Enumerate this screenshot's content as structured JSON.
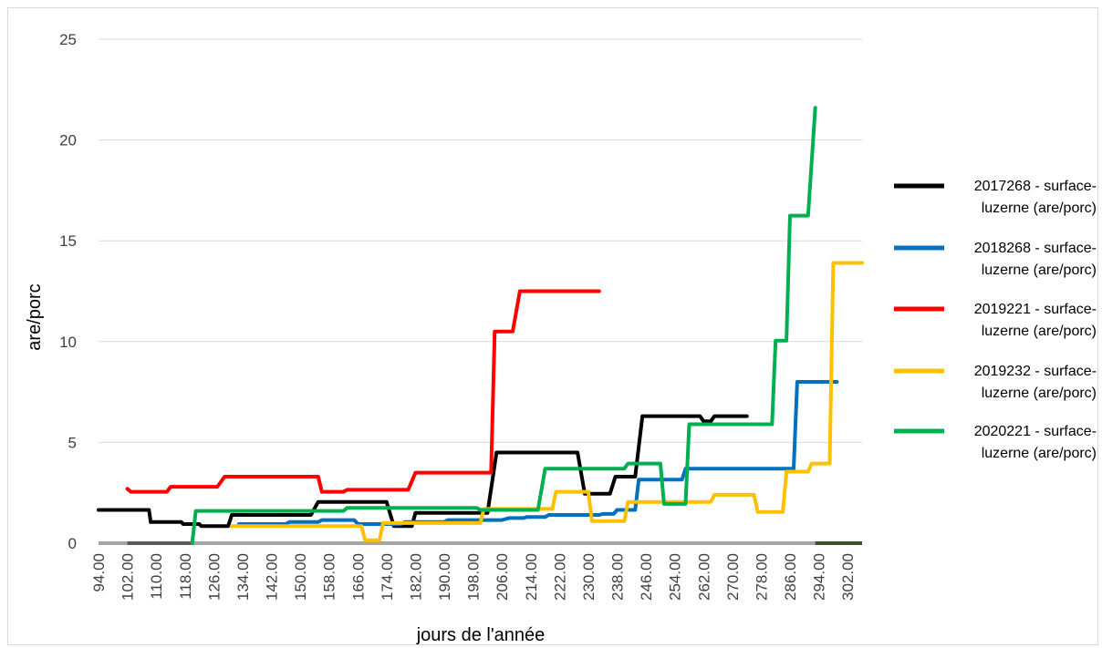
{
  "chart_data": {
    "type": "line",
    "xlabel": "jours de l'année",
    "ylabel": "are/porc",
    "xlim": [
      94,
      306
    ],
    "ylim": [
      0,
      25
    ],
    "yticks": [
      "0",
      "5",
      "10",
      "15",
      "20",
      "25"
    ],
    "xticks": [
      "94.00",
      "102.00",
      "110.00",
      "118.00",
      "126.00",
      "134.00",
      "142.00",
      "150.00",
      "158.00",
      "166.00",
      "174.00",
      "182.00",
      "190.00",
      "198.00",
      "206.00",
      "214.00",
      "222.00",
      "230.00",
      "238.00",
      "246.00",
      "254.00",
      "262.00",
      "270.00",
      "278.00",
      "286.00",
      "294.00",
      "302.00"
    ],
    "xtick_values": [
      94,
      102,
      110,
      118,
      126,
      134,
      142,
      150,
      158,
      166,
      174,
      182,
      190,
      198,
      206,
      214,
      222,
      230,
      238,
      246,
      254,
      262,
      270,
      278,
      286,
      294,
      302
    ],
    "grid": "horizontal",
    "legend_position": "right",
    "series": [
      {
        "name": "2017268 -  surface-luzerne (are/porc)",
        "color": "#000000",
        "points": [
          [
            94,
            1.65
          ],
          [
            108,
            1.65
          ],
          [
            108.5,
            1.05
          ],
          [
            117,
            1.05
          ],
          [
            117.5,
            0.95
          ],
          [
            122,
            0.95
          ],
          [
            122.5,
            0.85
          ],
          [
            130,
            0.85
          ],
          [
            131,
            1.4
          ],
          [
            153,
            1.4
          ],
          [
            155,
            2.05
          ],
          [
            174,
            2.05
          ],
          [
            176,
            0.85
          ],
          [
            181,
            0.85
          ],
          [
            182,
            1.5
          ],
          [
            202,
            1.5
          ],
          [
            204.5,
            4.5
          ],
          [
            227,
            4.5
          ],
          [
            229,
            2.45
          ],
          [
            236,
            2.45
          ],
          [
            237.5,
            3.3
          ],
          [
            243,
            3.3
          ],
          [
            245,
            6.3
          ],
          [
            261,
            6.3
          ],
          [
            262,
            6.05
          ],
          [
            264,
            6.05
          ],
          [
            265,
            6.3
          ],
          [
            274,
            6.3
          ]
        ]
      },
      {
        "name": "2018268 -  surface-luzerne (are/porc)",
        "color": "#0070c0",
        "points": [
          [
            133,
            0.95
          ],
          [
            146,
            0.95
          ],
          [
            147,
            1.05
          ],
          [
            155,
            1.05
          ],
          [
            156,
            1.15
          ],
          [
            165,
            1.15
          ],
          [
            166,
            0.95
          ],
          [
            178,
            0.95
          ],
          [
            179,
            1.05
          ],
          [
            190,
            1.05
          ],
          [
            191,
            1.15
          ],
          [
            206,
            1.15
          ],
          [
            208,
            1.25
          ],
          [
            212,
            1.25
          ],
          [
            213,
            1.3
          ],
          [
            218,
            1.3
          ],
          [
            219,
            1.4
          ],
          [
            233,
            1.4
          ],
          [
            234,
            1.45
          ],
          [
            237,
            1.45
          ],
          [
            238,
            1.65
          ],
          [
            243,
            1.65
          ],
          [
            244,
            3.15
          ],
          [
            256,
            3.15
          ],
          [
            257,
            3.7
          ],
          [
            287,
            3.7
          ],
          [
            288,
            8.0
          ],
          [
            299,
            8.0
          ]
        ]
      },
      {
        "name": "2019221 -  surface-luzerne (are/porc)",
        "color": "#ff0000",
        "points": [
          [
            102,
            2.7
          ],
          [
            103,
            2.55
          ],
          [
            113,
            2.55
          ],
          [
            114,
            2.8
          ],
          [
            127,
            2.8
          ],
          [
            129,
            3.3
          ],
          [
            155,
            3.3
          ],
          [
            156,
            2.55
          ],
          [
            162,
            2.55
          ],
          [
            163,
            2.65
          ],
          [
            180,
            2.65
          ],
          [
            182,
            3.5
          ],
          [
            203,
            3.5
          ],
          [
            204,
            10.5
          ],
          [
            209,
            10.5
          ],
          [
            211,
            12.5
          ],
          [
            233,
            12.5
          ]
        ]
      },
      {
        "name": "2019232 -  surface-luzerne (are/porc)",
        "color": "#ffc000",
        "points": [
          [
            131,
            0.85
          ],
          [
            167,
            0.85
          ],
          [
            168,
            0.15
          ],
          [
            172,
            0.15
          ],
          [
            173,
            1.0
          ],
          [
            200,
            1.0
          ],
          [
            201,
            1.7
          ],
          [
            220,
            1.7
          ],
          [
            221,
            2.55
          ],
          [
            230,
            2.55
          ],
          [
            231,
            1.1
          ],
          [
            240,
            1.1
          ],
          [
            241,
            2.05
          ],
          [
            264,
            2.05
          ],
          [
            265,
            2.4
          ],
          [
            276,
            2.4
          ],
          [
            277,
            1.55
          ],
          [
            284,
            1.55
          ],
          [
            285,
            3.55
          ],
          [
            291,
            3.55
          ],
          [
            292,
            3.95
          ],
          [
            297,
            3.95
          ],
          [
            298,
            13.9
          ],
          [
            306,
            13.9
          ]
        ]
      },
      {
        "name": "2020221 -  surface-luzerne (are/porc)",
        "color": "#00b050",
        "points": [
          [
            120,
            0
          ],
          [
            121,
            1.6
          ],
          [
            162,
            1.6
          ],
          [
            163,
            1.75
          ],
          [
            199,
            1.75
          ],
          [
            200,
            1.65
          ],
          [
            216,
            1.65
          ],
          [
            218,
            3.7
          ],
          [
            240,
            3.7
          ],
          [
            241,
            3.95
          ],
          [
            250,
            3.95
          ],
          [
            251,
            1.95
          ],
          [
            257,
            1.95
          ],
          [
            258,
            5.9
          ],
          [
            281,
            5.9
          ],
          [
            282,
            10.05
          ],
          [
            285,
            10.05
          ],
          [
            286,
            16.25
          ],
          [
            291,
            16.25
          ],
          [
            293,
            21.6
          ]
        ]
      }
    ],
    "baseline_colors": [
      "#a5a5a5",
      "#595959",
      "#375623"
    ]
  }
}
